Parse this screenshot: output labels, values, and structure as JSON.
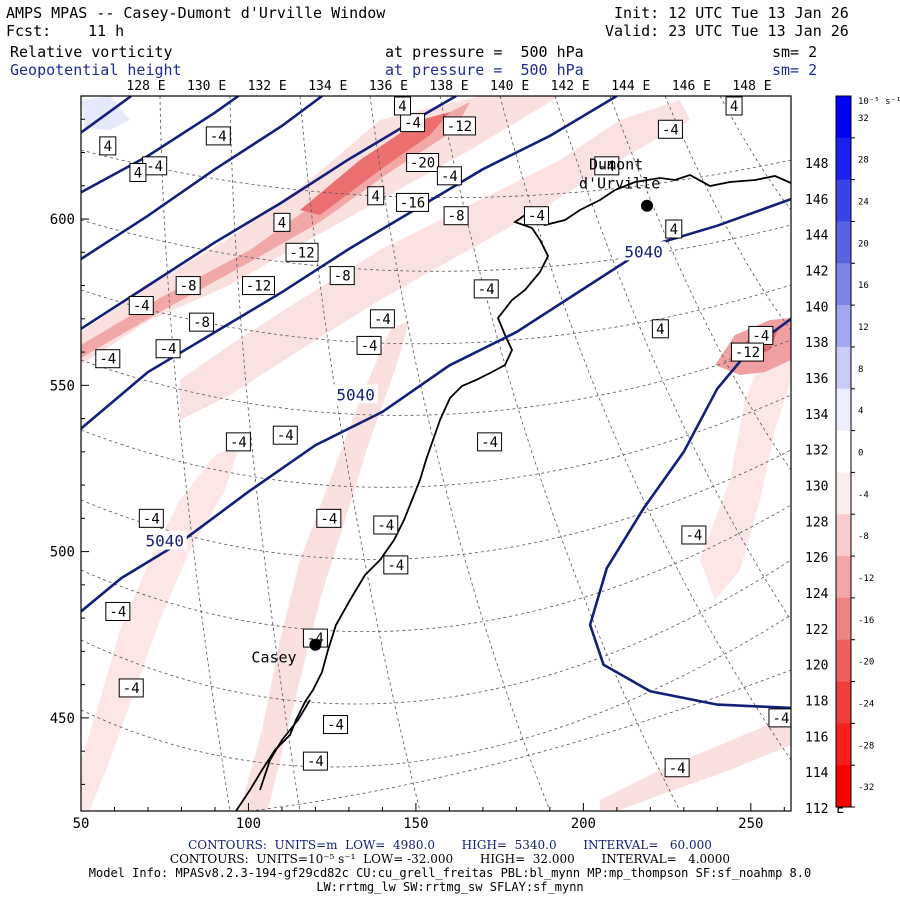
{
  "header": {
    "title": "AMPS MPAS -- Casey-Dumont d'Urville Window",
    "fcst_label": "Fcst:",
    "fcst_value": "11 h",
    "init": "Init: 12 UTC Tue 13 Jan 26",
    "valid": "Valid: 23 UTC Tue 13 Jan 26",
    "field1": "Relative vorticity",
    "field2": "Geopotential height",
    "pressure1": "at pressure =  500 hPa",
    "pressure2": "at pressure =  500 hPa",
    "sm1": "sm= 2",
    "sm2": "sm= 2"
  },
  "chart_data": {
    "type": "contour",
    "title": "Relative vorticity and Geopotential height at 500 hPa",
    "x_ticks": [
      50,
      100,
      150,
      200,
      250
    ],
    "y_ticks": [
      450,
      500,
      550,
      600
    ],
    "xlim": [
      50,
      262
    ],
    "ylim": [
      422,
      637
    ],
    "top_lon_labels": [
      "128 E",
      "130 E",
      "132 E",
      "134 E",
      "136 E",
      "138 E",
      "140 E",
      "142 E",
      "144 E",
      "146 E",
      "148 E"
    ],
    "right_lat_labels": [
      "148 E",
      "146 E",
      "144 E",
      "142 E",
      "140 E",
      "138 E",
      "136 E",
      "134 E",
      "132 E",
      "130 E",
      "128 E",
      "126 E",
      "124 E",
      "122 E",
      "120 E",
      "118 E",
      "116 E",
      "114 E",
      "112 E"
    ],
    "stations": [
      {
        "name": "Casey",
        "x": 120,
        "y": 472
      },
      {
        "name_line1": "Dumont",
        "name_line2": "d'Urville",
        "x": 219,
        "y": 604
      }
    ],
    "height_contours": {
      "units": "m",
      "low": "4980.0",
      "high": "5340.0",
      "interval": "60.000",
      "labels": [
        {
          "text": "5040",
          "x": 75,
          "y": 503
        },
        {
          "text": "5040",
          "x": 132,
          "y": 547
        },
        {
          "text": "5040",
          "x": 218,
          "y": 590
        }
      ],
      "lines": [
        [
          [
            50,
            482
          ],
          [
            62,
            492
          ],
          [
            80,
            503
          ],
          [
            100,
            518
          ],
          [
            120,
            532
          ],
          [
            140,
            542
          ],
          [
            160,
            556
          ],
          [
            180,
            566
          ],
          [
            200,
            579
          ],
          [
            220,
            592
          ],
          [
            240,
            598
          ],
          [
            262,
            606
          ]
        ],
        [
          [
            50,
            537
          ],
          [
            70,
            554
          ],
          [
            90,
            566
          ],
          [
            110,
            578
          ],
          [
            130,
            591
          ],
          [
            150,
            603
          ],
          [
            170,
            615
          ],
          [
            190,
            625
          ],
          [
            210,
            637
          ]
        ],
        [
          [
            50,
            567
          ],
          [
            70,
            580
          ],
          [
            90,
            593
          ],
          [
            110,
            605
          ],
          [
            130,
            618
          ],
          [
            150,
            630
          ],
          [
            162,
            637
          ]
        ],
        [
          [
            50,
            588
          ],
          [
            70,
            601
          ],
          [
            90,
            615
          ],
          [
            110,
            628
          ],
          [
            122,
            637
          ]
        ],
        [
          [
            50,
            608
          ],
          [
            70,
            619
          ],
          [
            90,
            632
          ],
          [
            97,
            637
          ]
        ],
        [
          [
            50,
            626
          ],
          [
            65,
            637
          ]
        ],
        [
          [
            262,
            453
          ],
          [
            240,
            454
          ],
          [
            220,
            458
          ],
          [
            206,
            466
          ],
          [
            202,
            478
          ],
          [
            207,
            495
          ],
          [
            218,
            513
          ],
          [
            230,
            530
          ],
          [
            240,
            549
          ],
          [
            250,
            561
          ],
          [
            262,
            570
          ]
        ]
      ]
    },
    "vorticity_contours": {
      "units": "10^-5 s^-1",
      "low": "-32.000",
      "high": "32.000",
      "interval": "4.0000",
      "labels": [
        {
          "text": "-12",
          "x": 163,
          "y": 628
        },
        {
          "text": "-20",
          "x": 152,
          "y": 617
        },
        {
          "text": "-16",
          "x": 149,
          "y": 605
        },
        {
          "text": "-8",
          "x": 162,
          "y": 601
        },
        {
          "text": "-12",
          "x": 116,
          "y": 590
        },
        {
          "text": "-12",
          "x": 103,
          "y": 580
        },
        {
          "text": "-8",
          "x": 128,
          "y": 583
        },
        {
          "text": "-8",
          "x": 82,
          "y": 580
        },
        {
          "text": "-8",
          "x": 86,
          "y": 569
        },
        {
          "text": "-4",
          "x": 149,
          "y": 629
        },
        {
          "text": "-4",
          "x": 186,
          "y": 601
        },
        {
          "text": "-4",
          "x": 207,
          "y": 616
        },
        {
          "text": "-4",
          "x": 171,
          "y": 579
        },
        {
          "text": "-4",
          "x": 140,
          "y": 570
        },
        {
          "text": "-4",
          "x": 136,
          "y": 562
        },
        {
          "text": "-4",
          "x": 68,
          "y": 574
        },
        {
          "text": "-4",
          "x": 76,
          "y": 561
        },
        {
          "text": "-4",
          "x": 58,
          "y": 558
        },
        {
          "text": "-4",
          "x": 72,
          "y": 616
        },
        {
          "text": "-4",
          "x": 91,
          "y": 625
        },
        {
          "text": "-4",
          "x": 160,
          "y": 613
        },
        {
          "text": "-4",
          "x": 97,
          "y": 533
        },
        {
          "text": "-4",
          "x": 111,
          "y": 535
        },
        {
          "text": "-4",
          "x": 172,
          "y": 533
        },
        {
          "text": "-4",
          "x": 71,
          "y": 510
        },
        {
          "text": "-4",
          "x": 124,
          "y": 510
        },
        {
          "text": "-4",
          "x": 141,
          "y": 508
        },
        {
          "text": "-4",
          "x": 144,
          "y": 496
        },
        {
          "text": "-4",
          "x": 61,
          "y": 482
        },
        {
          "text": "-4",
          "x": 120,
          "y": 474
        },
        {
          "text": "-4",
          "x": 65,
          "y": 459
        },
        {
          "text": "-4",
          "x": 126,
          "y": 448
        },
        {
          "text": "-4",
          "x": 120,
          "y": 437
        },
        {
          "text": "-4",
          "x": 226,
          "y": 627
        },
        {
          "text": "-4",
          "x": 233,
          "y": 505
        },
        {
          "text": "-4",
          "x": 253,
          "y": 565
        },
        {
          "text": "-4",
          "x": 259,
          "y": 450
        },
        {
          "text": "-4",
          "x": 228,
          "y": 435
        },
        {
          "text": "-12",
          "x": 249,
          "y": 560
        },
        {
          "text": "4",
          "x": 58,
          "y": 622
        },
        {
          "text": "4",
          "x": 67,
          "y": 614
        },
        {
          "text": "4",
          "x": 110,
          "y": 599
        },
        {
          "text": "4",
          "x": 146,
          "y": 634
        },
        {
          "text": "4",
          "x": 138,
          "y": 607
        },
        {
          "text": "4",
          "x": 227,
          "y": 597
        },
        {
          "text": "4",
          "x": 223,
          "y": 567
        },
        {
          "text": "4",
          "x": 245,
          "y": 634
        }
      ]
    },
    "colorbar": {
      "unit_label": "10⁻⁵ s⁻¹",
      "labels": [
        "32",
        "28",
        "24",
        "20",
        "16",
        "12",
        "8",
        "4",
        "0",
        "-4",
        "-8",
        "-12",
        "-16",
        "-20",
        "-24",
        "-28",
        "-32"
      ],
      "colors": [
        "#0000ff",
        "#1a21f0",
        "#3a43e6",
        "#5a63e0",
        "#7c84e6",
        "#a1a7ef",
        "#c9ccf7",
        "#eceefd",
        "#ffffff",
        "#fdeeee",
        "#f8cccc",
        "#f3a6a6",
        "#ef8282",
        "#ef5f5f",
        "#f23d3d",
        "#f81f1f",
        "#ff0000"
      ]
    }
  },
  "footer": {
    "line1": "CONTOURS:  UNITS=m  LOW=  4980.0       HIGH=  5340.0       INTERVAL=   60.000",
    "line2": "CONTOURS:  UNITS=10⁻⁵ s⁻¹  LOW= -32.000       HIGH=  32.000       INTERVAL=   4.0000",
    "line3": "Model Info: MPASv8.2.3-194-gf29cd82c CU:cu_grell_freitas PBL:bl_mynn MP:mp_thompson SF:sf_noahmp 8.0",
    "line4": "LW:rrtmg_lw SW:rrtmg_sw SFLAY:sf_mynn"
  },
  "colors": {
    "height": "#12207a",
    "coast": "#000000"
  }
}
